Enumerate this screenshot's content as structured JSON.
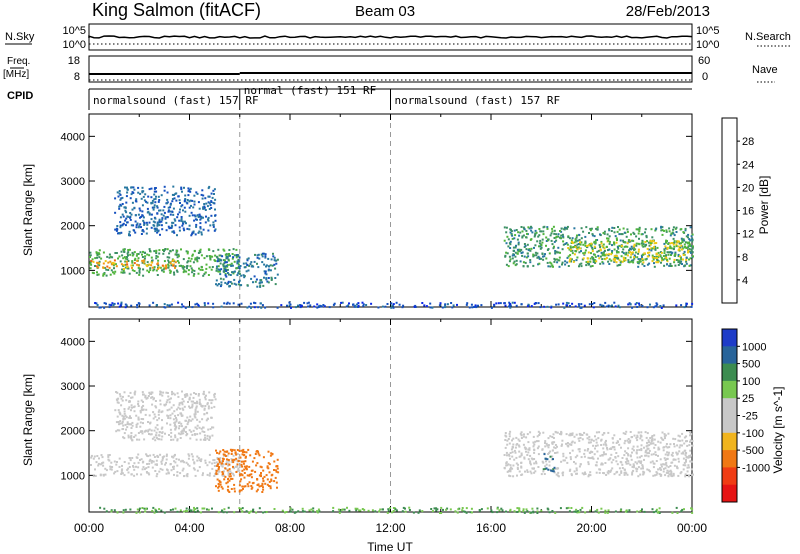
{
  "header": {
    "station": "King Salmon (fitACF)",
    "beam": "Beam 03",
    "date": "28/Feb/2013"
  },
  "summary_panels": {
    "nsky_label": "N.Sky",
    "nsearch_label": "N.Search",
    "noise_ticks": [
      "10^5",
      "10^0"
    ],
    "freq_label_1": "Freq.",
    "freq_label_2": "[MHz]",
    "freq_ticks": [
      "18",
      "8"
    ],
    "nave_label": "Nave",
    "nave_ticks": [
      "60",
      "0"
    ],
    "cpid_label": "CPID",
    "cpid_segments": [
      {
        "label": "normalsound (fast) 157 RF",
        "start_hour": 0,
        "end_hour": 6
      },
      {
        "label": "normal (fast) 151 RF",
        "start_hour": 6,
        "end_hour": 12
      },
      {
        "label": "normalsound (fast) 157 RF",
        "start_hour": 12,
        "end_hour": 24
      }
    ]
  },
  "colors": {
    "power_scale": [
      "#0a28e6",
      "#1450be",
      "#2878a0",
      "#3c9064",
      "#50b43c",
      "#f0c814",
      "#f09614",
      "#f06414",
      "#e61e14"
    ],
    "velocity_scale": [
      "#1e3cc8",
      "#28649a",
      "#3c8c50",
      "#78c850",
      "#c8c8c8",
      "#c8c8c8",
      "#f0b41e",
      "#f07814",
      "#f03c14",
      "#e61414"
    ]
  },
  "chart_data": [
    {
      "type": "heatmap",
      "panel": "power",
      "ylabel": "Slant Range [km]",
      "colorbar_label": "Power [dB]",
      "colorbar_ticks": [
        "4",
        "8",
        "12",
        "16",
        "20",
        "24",
        "28"
      ],
      "x_ticks": [
        "00:00",
        "04:00",
        "08:00",
        "12:00",
        "16:00",
        "20:00",
        "00:00"
      ],
      "y_ticks": [
        "1000",
        "2000",
        "3000",
        "4000"
      ],
      "xlim_hours": [
        0,
        24
      ],
      "ylim_km": [
        180,
        4500
      ],
      "regions": [
        {
          "x": [
            0.0,
            6.0
          ],
          "y": [
            900,
            1500
          ],
          "value_db": 16
        },
        {
          "x": [
            0.0,
            3.5
          ],
          "y": [
            1050,
            1250
          ],
          "value_db": 26
        },
        {
          "x": [
            1.0,
            5.0
          ],
          "y": [
            1800,
            2900
          ],
          "value_db": 8
        },
        {
          "x": [
            5.0,
            7.5
          ],
          "y": [
            650,
            1400
          ],
          "value_db": 10
        },
        {
          "x": [
            16.5,
            24.0
          ],
          "y": [
            1100,
            2000
          ],
          "value_db": 14
        },
        {
          "x": [
            19.0,
            24.0
          ],
          "y": [
            1200,
            1700
          ],
          "value_db": 20
        },
        {
          "x": [
            0.0,
            24.0
          ],
          "y": [
            180,
            300
          ],
          "value_db": 6
        }
      ]
    },
    {
      "type": "heatmap",
      "panel": "velocity",
      "ylabel": "Slant Range [km]",
      "xlabel": "Time UT",
      "colorbar_label": "Velocity [m s^-1]",
      "colorbar_ticks": [
        "1000",
        "500",
        "100",
        "25",
        "-25",
        "-100",
        "-500",
        "-1000"
      ],
      "x_ticks": [
        "00:00",
        "04:00",
        "08:00",
        "12:00",
        "16:00",
        "20:00",
        "00:00"
      ],
      "y_ticks": [
        "1000",
        "2000",
        "3000",
        "4000"
      ],
      "xlim_hours": [
        0,
        24
      ],
      "ylim_km": [
        180,
        4500
      ],
      "regions": [
        {
          "x": [
            0.0,
            6.0
          ],
          "y": [
            1000,
            1500
          ],
          "value_ms": 0
        },
        {
          "x": [
            1.0,
            5.0
          ],
          "y": [
            1800,
            2900
          ],
          "value_ms": 0
        },
        {
          "x": [
            5.0,
            7.5
          ],
          "y": [
            650,
            1600
          ],
          "value_ms": -200
        },
        {
          "x": [
            16.5,
            24.0
          ],
          "y": [
            1000,
            2000
          ],
          "value_ms": 0
        },
        {
          "x": [
            18.0,
            18.5
          ],
          "y": [
            1100,
            1500
          ],
          "value_ms": 100
        },
        {
          "x": [
            0.0,
            24.0
          ],
          "y": [
            180,
            300
          ],
          "value_ms": 50
        }
      ]
    }
  ]
}
